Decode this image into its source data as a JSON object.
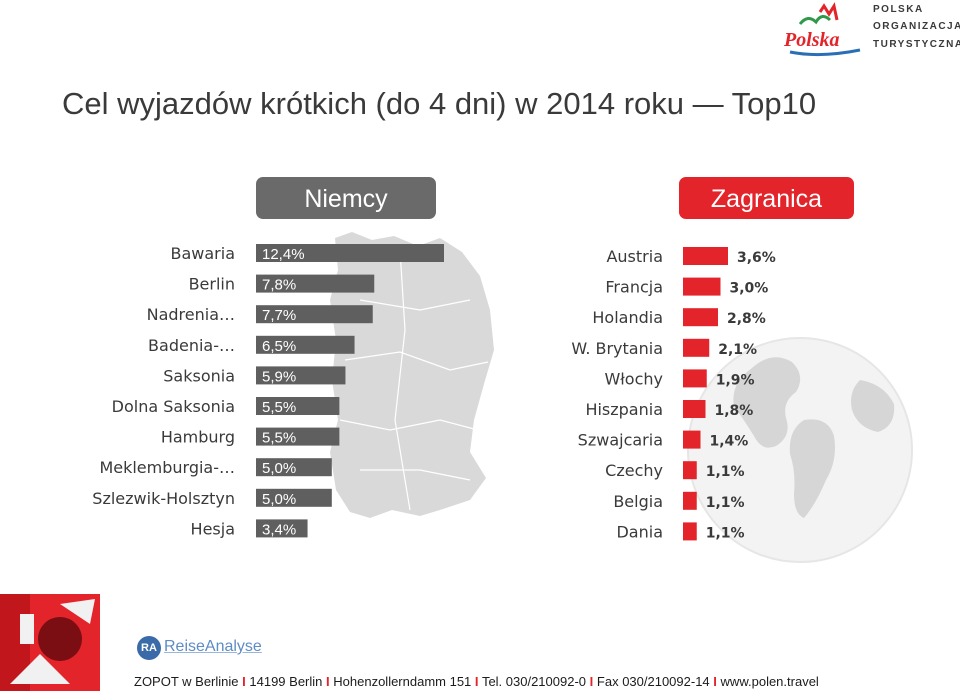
{
  "title": "Cel wyjazdów krótkich (do 4 dni) w 2014 roku — Top10",
  "logo": {
    "brand": "Polska",
    "lines": [
      "POLSKA",
      "ORGANIZACJA",
      "TURYSTYCZNA"
    ]
  },
  "headers": {
    "left": "Niemcy",
    "right": "Zagranica"
  },
  "colors": {
    "germany_bar": "#5f5f5f",
    "abroad_bar": "#e3242b",
    "map": "#d9d9d9",
    "accent": "#e3242b"
  },
  "chart_data": [
    {
      "type": "bar",
      "orientation": "horizontal",
      "header": "Niemcy",
      "categories": [
        "Bawaria",
        "Berlin",
        "Nadrenia…",
        "Badenia-…",
        "Saksonia",
        "Dolna Saksonia",
        "Hamburg",
        "Meklemburgia-…",
        "Szlezwik-Holsztyn",
        "Hesja"
      ],
      "values": [
        12.4,
        7.8,
        7.7,
        6.5,
        5.9,
        5.5,
        5.5,
        5.0,
        5.0,
        3.4
      ],
      "labels": [
        "12,4%",
        "7,8%",
        "7,7%",
        "6,5%",
        "5,9%",
        "5,5%",
        "5,5%",
        "5,0%",
        "5,0%",
        "3,4%"
      ],
      "unit": "%"
    },
    {
      "type": "bar",
      "orientation": "horizontal",
      "header": "Zagranica",
      "categories": [
        "Austria",
        "Francja",
        "Holandia",
        "W. Brytania",
        "Włochy",
        "Hiszpania",
        "Szwajcaria",
        "Czechy",
        "Belgia",
        "Dania"
      ],
      "values": [
        3.6,
        3.0,
        2.8,
        2.1,
        1.9,
        1.8,
        1.4,
        1.1,
        1.1,
        1.1
      ],
      "labels": [
        "3,6%",
        "3,0%",
        "2,8%",
        "2,1%",
        "1,9%",
        "1,8%",
        "1,4%",
        "1,1%",
        "1,1%",
        "1,1%"
      ],
      "unit": "%"
    }
  ],
  "ra_logo": {
    "initials": "RA",
    "name": "ReiseAnalyse"
  },
  "footer": {
    "parts": [
      "ZOPOT w Berlinie",
      "14199 Berlin",
      "Hohenzollerndamm 151",
      "Tel. 030/210092-0",
      "Fax 030/210092-14",
      "www.polen.travel"
    ],
    "separator": "I"
  }
}
